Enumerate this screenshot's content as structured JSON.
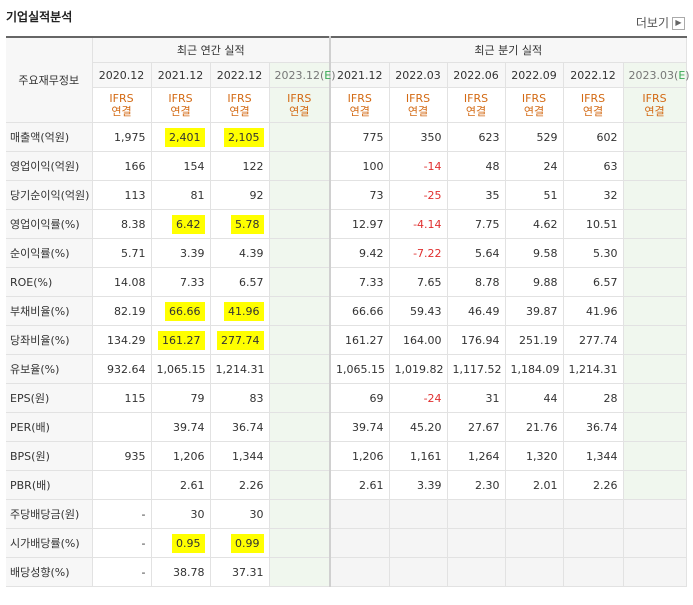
{
  "title": "기업실적분석",
  "more_label": "더보기",
  "more_icon": "chevron-right-icon",
  "stub_header": "주요재무정보",
  "annual_header": "최근 연간 실적",
  "quarter_header": "최근 분기 실적",
  "annual_periods": [
    "2020.12",
    "2021.12",
    "2022.12",
    "2023.12(E)"
  ],
  "quarter_periods": [
    "2021.12",
    "2022.03",
    "2022.06",
    "2022.09",
    "2022.12",
    "2023.03(E)"
  ],
  "ifrs_top": "IFRS",
  "ifrs_bottom": "연결",
  "rows": [
    {
      "label": "매출액(억원)",
      "annual": [
        "1,975",
        "2,401",
        "2,105",
        ""
      ],
      "quarter": [
        "775",
        "350",
        "623",
        "529",
        "602",
        ""
      ]
    },
    {
      "label": "영업이익(억원)",
      "annual": [
        "166",
        "154",
        "122",
        ""
      ],
      "quarter": [
        "100",
        "-14",
        "48",
        "24",
        "63",
        ""
      ]
    },
    {
      "label": "당기순이익(억원)",
      "annual": [
        "113",
        "81",
        "92",
        ""
      ],
      "quarter": [
        "73",
        "-25",
        "35",
        "51",
        "32",
        ""
      ]
    },
    {
      "label": "영업이익률(%)",
      "annual": [
        "8.38",
        "6.42",
        "5.78",
        ""
      ],
      "quarter": [
        "12.97",
        "-4.14",
        "7.75",
        "4.62",
        "10.51",
        ""
      ]
    },
    {
      "label": "순이익률(%)",
      "annual": [
        "5.71",
        "3.39",
        "4.39",
        ""
      ],
      "quarter": [
        "9.42",
        "-7.22",
        "5.64",
        "9.58",
        "5.30",
        ""
      ]
    },
    {
      "label": "ROE(%)",
      "annual": [
        "14.08",
        "7.33",
        "6.57",
        ""
      ],
      "quarter": [
        "7.33",
        "7.65",
        "8.78",
        "9.88",
        "6.57",
        ""
      ]
    },
    {
      "label": "부채비율(%)",
      "annual": [
        "82.19",
        "66.66",
        "41.96",
        ""
      ],
      "quarter": [
        "66.66",
        "59.43",
        "46.49",
        "39.87",
        "41.96",
        ""
      ]
    },
    {
      "label": "당좌비율(%)",
      "annual": [
        "134.29",
        "161.27",
        "277.74",
        ""
      ],
      "quarter": [
        "161.27",
        "164.00",
        "176.94",
        "251.19",
        "277.74",
        ""
      ]
    },
    {
      "label": "유보율(%)",
      "annual": [
        "932.64",
        "1,065.15",
        "1,214.31",
        ""
      ],
      "quarter": [
        "1,065.15",
        "1,019.82",
        "1,117.52",
        "1,184.09",
        "1,214.31",
        ""
      ]
    },
    {
      "label": "EPS(원)",
      "annual": [
        "115",
        "79",
        "83",
        ""
      ],
      "quarter": [
        "69",
        "-24",
        "31",
        "44",
        "28",
        ""
      ]
    },
    {
      "label": "PER(배)",
      "annual": [
        "",
        "39.74",
        "36.74",
        ""
      ],
      "quarter": [
        "39.74",
        "45.20",
        "27.67",
        "21.76",
        "36.74",
        ""
      ]
    },
    {
      "label": "BPS(원)",
      "annual": [
        "935",
        "1,206",
        "1,344",
        ""
      ],
      "quarter": [
        "1,206",
        "1,161",
        "1,264",
        "1,320",
        "1,344",
        ""
      ]
    },
    {
      "label": "PBR(배)",
      "annual": [
        "",
        "2.61",
        "2.26",
        ""
      ],
      "quarter": [
        "2.61",
        "3.39",
        "2.30",
        "2.01",
        "2.26",
        ""
      ]
    },
    {
      "label": "주당배당금(원)",
      "annual": [
        "-",
        "30",
        "30",
        ""
      ],
      "quarter": null
    },
    {
      "label": "시가배당률(%)",
      "annual": [
        "-",
        "0.95",
        "0.99",
        ""
      ],
      "quarter": null
    },
    {
      "label": "배당성향(%)",
      "annual": [
        "-",
        "38.78",
        "37.31",
        ""
      ],
      "quarter": null
    }
  ],
  "highlights": [
    {
      "row": 0,
      "cols": [
        1,
        2
      ]
    },
    {
      "row": 3,
      "cols": [
        1,
        2
      ]
    },
    {
      "row": 6,
      "cols": [
        1,
        2
      ]
    },
    {
      "row": 7,
      "cols": [
        1,
        2
      ]
    },
    {
      "row": 14,
      "cols": [
        1,
        2
      ]
    }
  ],
  "section_breaks": [
    3,
    6,
    9,
    13
  ],
  "colors": {
    "negative": "#e03030",
    "highlight": "#ffff00",
    "ifrs": "#d36a14",
    "estimate_bg": "#f0f7ee"
  }
}
